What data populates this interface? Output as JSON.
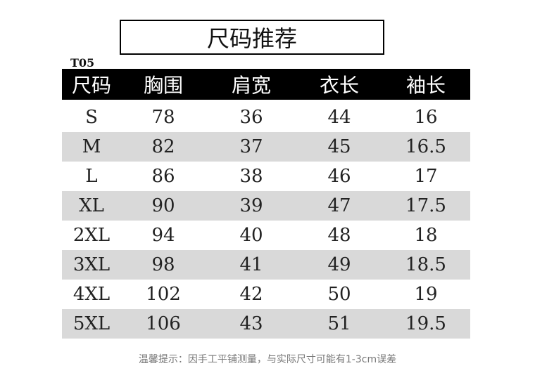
{
  "title": "尺码推荐",
  "style_code": "T05",
  "table": {
    "headers": [
      "尺码",
      "胸围",
      "肩宽",
      "衣长",
      "袖长"
    ],
    "rows": [
      [
        "S",
        "78",
        "36",
        "44",
        "16"
      ],
      [
        "M",
        "82",
        "37",
        "45",
        "16.5"
      ],
      [
        "L",
        "86",
        "38",
        "46",
        "17"
      ],
      [
        "XL",
        "90",
        "39",
        "47",
        "17.5"
      ],
      [
        "2XL",
        "94",
        "40",
        "48",
        "18"
      ],
      [
        "3XL",
        "98",
        "41",
        "49",
        "18.5"
      ],
      [
        "4XL",
        "102",
        "42",
        "50",
        "19"
      ],
      [
        "5XL",
        "106",
        "43",
        "51",
        "19.5"
      ]
    ]
  },
  "footer_note": "温馨提示：因手工平铺测量，与实际尺寸可能有1-3cm误差",
  "colors": {
    "header_bg": "#000000",
    "alt_row_bg": "#d9d9d9"
  }
}
